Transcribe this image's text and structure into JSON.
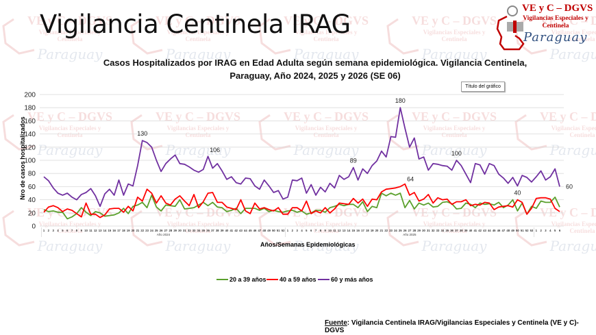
{
  "header": {
    "title": "Vigilancia Centinela IRAG"
  },
  "logo": {
    "line1": "VE y C – DGVS",
    "line2": "Vigilancias Especiales y Centinela",
    "line3": "Paraguay"
  },
  "watermark": {
    "line1": "VE y C – DGVS",
    "line2": "Vigilancias Especiales y",
    "line3": "Centinela",
    "line4": "Paraguay"
  },
  "chart_title_placeholder": "Título del gráfico",
  "source": {
    "label": "Fuente",
    "text": ": Vigilancia  Centinela IRAG/Vigilancias Especiales y Centinela (VE y C)-DGVS"
  },
  "colors": {
    "green": "#5aa02c",
    "red": "#ff0000",
    "purple": "#7030a0"
  },
  "chart_data": {
    "type": "line",
    "title": "Casos Hospitalizados por IRAG en Edad Adulta según semana epidemiológica. Vigilancia Centinela,",
    "subtitle": "Paraguay, Año 2024, 2025 y 2026 (SE 06)",
    "xlabel": "Años/Semanas Epidemiológicas",
    "ylabel": "Nro de casos hospitalizados",
    "ylim": [
      0,
      200
    ],
    "yticks": [
      0,
      20,
      40,
      60,
      80,
      100,
      120,
      140,
      160,
      180,
      200
    ],
    "grid": true,
    "legend": "bottom",
    "year_groups": [
      {
        "label": "Año 2024",
        "weeks": 52
      },
      {
        "label": "Año 2025",
        "weeks": 53
      },
      {
        "label": "",
        "weeks": 6
      }
    ],
    "series": [
      {
        "name": "20 a 39 años",
        "color": "#5aa02c",
        "values": [
          25,
          22,
          23,
          21,
          21,
          11,
          14,
          19,
          28,
          21,
          16,
          22,
          20,
          15,
          16,
          17,
          20,
          27,
          19,
          30,
          32,
          36,
          28,
          47,
          29,
          23,
          32,
          31,
          30,
          40,
          26,
          27,
          28,
          32,
          36,
          31,
          36,
          29,
          28,
          22,
          24,
          27,
          19,
          27,
          27,
          27,
          24,
          27,
          22,
          24,
          22,
          21,
          23,
          24,
          21,
          23,
          18,
          20,
          24,
          24,
          21,
          28,
          30,
          33,
          31,
          33,
          33,
          28,
          37,
          22,
          30,
          28,
          50,
          46,
          50,
          47,
          50,
          28,
          39,
          26,
          35,
          32,
          35,
          29,
          30,
          36,
          37,
          34,
          26,
          27,
          35,
          33,
          28,
          35,
          33,
          34,
          32,
          36,
          28,
          32,
          40,
          23,
          35,
          18,
          30,
          27,
          38,
          36,
          36,
          44,
          29
        ]
      },
      {
        "name": "40 a 59 años",
        "color": "#ff0000",
        "values": [
          21,
          29,
          31,
          28,
          22,
          26,
          24,
          19,
          14,
          35,
          18,
          18,
          13,
          17,
          26,
          27,
          27,
          21,
          30,
          23,
          44,
          38,
          56,
          50,
          35,
          46,
          35,
          32,
          41,
          46,
          38,
          31,
          48,
          28,
          37,
          50,
          51,
          36,
          36,
          29,
          27,
          25,
          40,
          23,
          19,
          35,
          26,
          28,
          25,
          23,
          28,
          18,
          18,
          28,
          28,
          23,
          38,
          19,
          23,
          20,
          28,
          20,
          26,
          35,
          34,
          33,
          42,
          35,
          41,
          30,
          41,
          40,
          52,
          56,
          57,
          58,
          60,
          64,
          47,
          51,
          38,
          41,
          48,
          35,
          43,
          40,
          41,
          33,
          37,
          37,
          40,
          31,
          33,
          32,
          36,
          35,
          25,
          29,
          30,
          31,
          29,
          40,
          36,
          18,
          27,
          42,
          43,
          43,
          41,
          27,
          22
        ]
      },
      {
        "name": "60 y más años",
        "color": "#7030a0",
        "values": [
          75,
          69,
          58,
          50,
          47,
          50,
          44,
          40,
          48,
          51,
          57,
          46,
          30,
          49,
          56,
          47,
          70,
          47,
          64,
          61,
          92,
          130,
          127,
          120,
          100,
          83,
          95,
          102,
          108,
          95,
          94,
          90,
          85,
          82,
          86,
          106,
          88,
          95,
          84,
          71,
          75,
          66,
          64,
          73,
          72,
          61,
          56,
          70,
          61,
          51,
          54,
          41,
          44,
          70,
          69,
          73,
          50,
          63,
          47,
          59,
          52,
          65,
          58,
          77,
          71,
          75,
          89,
          70,
          87,
          80,
          92,
          99,
          114,
          105,
          136,
          135,
          180,
          149,
          120,
          134,
          102,
          105,
          85,
          95,
          94,
          92,
          91,
          85,
          100,
          92,
          79,
          66,
          95,
          93,
          79,
          95,
          92,
          79,
          73,
          65,
          74,
          61,
          77,
          74,
          67,
          75,
          84,
          70,
          75,
          87,
          60
        ]
      }
    ],
    "annotations": [
      {
        "series": "60 y más años",
        "year": "2024",
        "week": 22,
        "label": "130"
      },
      {
        "series": "60 y más años",
        "year": "2024",
        "week": 36,
        "label": "106"
      },
      {
        "series": "60 y más años",
        "year": "2025",
        "week": 15,
        "label": "89"
      },
      {
        "series": "60 y más años",
        "year": "2025",
        "week": 25,
        "label": "180"
      },
      {
        "series": "40 a 59 años",
        "year": "2025",
        "week": 26,
        "label": "64"
      },
      {
        "series": "60 y más años",
        "year": "2025",
        "week": 37,
        "label": "100"
      },
      {
        "series": "40 a 59 años",
        "year": "2025",
        "week": 50,
        "label": "40"
      },
      {
        "series": "60 y más años",
        "year": "2026",
        "week": 6,
        "label": "60"
      }
    ]
  }
}
